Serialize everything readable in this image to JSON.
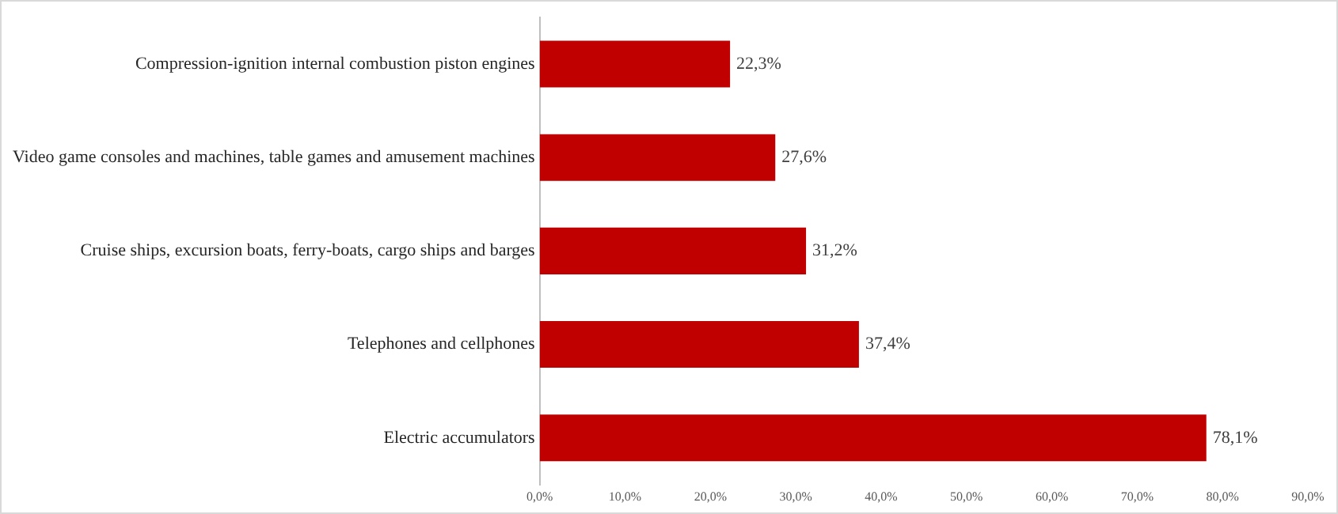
{
  "chart_data": {
    "type": "bar",
    "orientation": "horizontal",
    "categories": [
      "Compression-ignition internal combustion piston engines",
      "Video game consoles and machines, table games and amusement machines",
      "Cruise ships, excursion boats, ferry-boats, cargo ships and barges",
      "Telephones and cellphones",
      "Electric accumulators"
    ],
    "values": [
      22.3,
      27.6,
      31.2,
      37.4,
      78.1
    ],
    "value_labels": [
      "22,3%",
      "27,6%",
      "31,2%",
      "37,4%",
      "78,1%"
    ],
    "color": "#c00000",
    "xlim": [
      0,
      90
    ],
    "xticks": [
      {
        "value": 0,
        "label": "0,0%"
      },
      {
        "value": 10,
        "label": "10,0%"
      },
      {
        "value": 20,
        "label": "20,0%"
      },
      {
        "value": 30,
        "label": "30,0%"
      },
      {
        "value": 40,
        "label": "40,0%"
      },
      {
        "value": 50,
        "label": "50,0%"
      },
      {
        "value": 60,
        "label": "60,0%"
      },
      {
        "value": 70,
        "label": "70,0%"
      },
      {
        "value": 80,
        "label": "80,0%"
      },
      {
        "value": 90,
        "label": "90,0%"
      }
    ],
    "grid": false,
    "legend": false
  }
}
